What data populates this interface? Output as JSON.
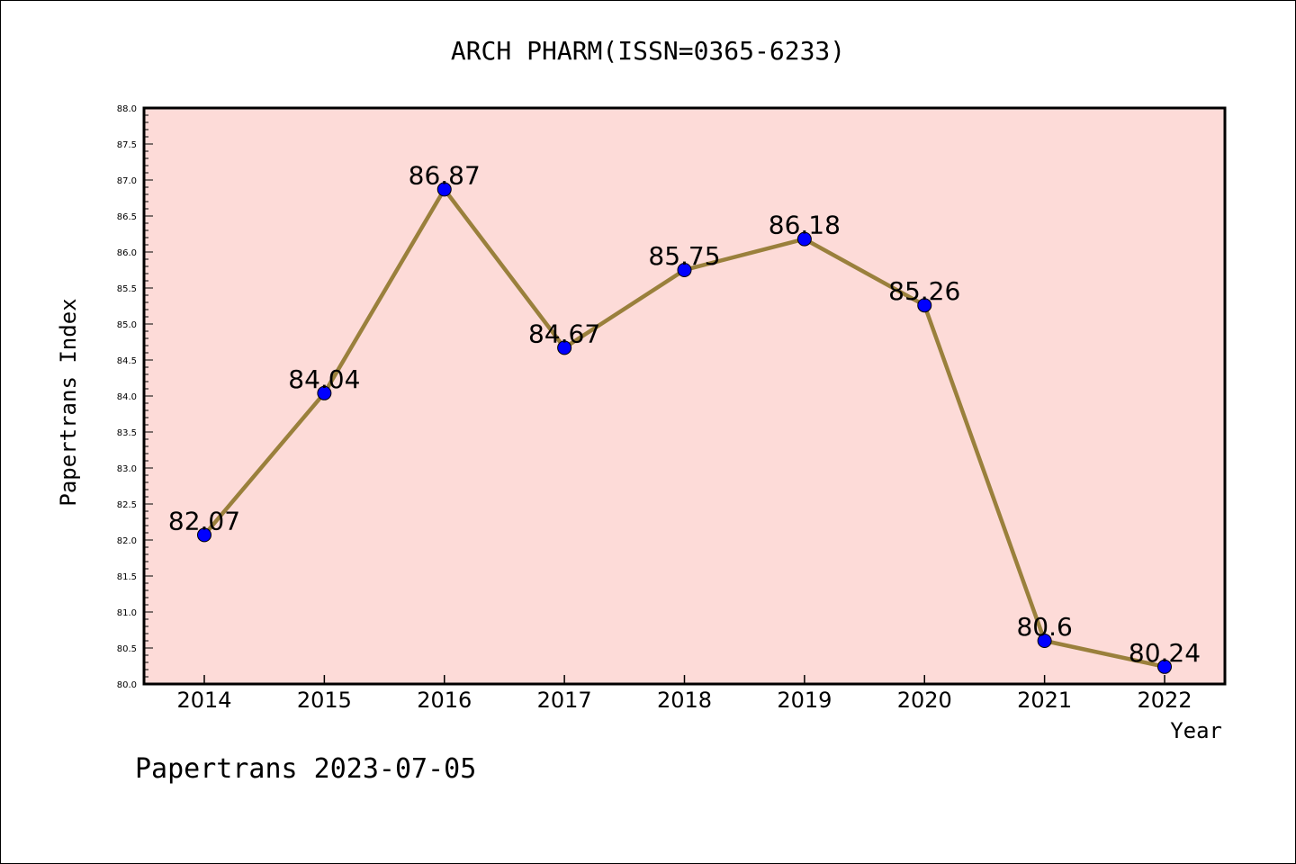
{
  "chart_data": {
    "type": "line",
    "title": "ARCH PHARM(ISSN=0365-6233)",
    "xlabel": "Year",
    "ylabel": "Papertrans Index",
    "categories": [
      "2014",
      "2015",
      "2016",
      "2017",
      "2018",
      "2019",
      "2020",
      "2021",
      "2022"
    ],
    "values": [
      82.07,
      84.04,
      86.87,
      84.67,
      85.75,
      86.18,
      85.26,
      80.6,
      80.24
    ],
    "value_labels": [
      "82.07",
      "84.04",
      "86.87",
      "84.67",
      "85.75",
      "86.18",
      "85.26",
      "80.6",
      "80.24"
    ],
    "ylim": [
      80.0,
      88.0
    ],
    "yticks": [
      "80.0",
      "80.5",
      "81.0",
      "81.5",
      "82.0",
      "82.5",
      "83.0",
      "83.5",
      "84.0",
      "84.5",
      "85.0",
      "85.5",
      "86.0",
      "86.5",
      "87.0",
      "87.5",
      "88.0"
    ],
    "grid": false,
    "colors": {
      "plot_background": "#fddbd8",
      "line": "#9a803c",
      "marker": "#0000ff"
    }
  },
  "footer": {
    "text": "Papertrans 2023-07-05"
  }
}
